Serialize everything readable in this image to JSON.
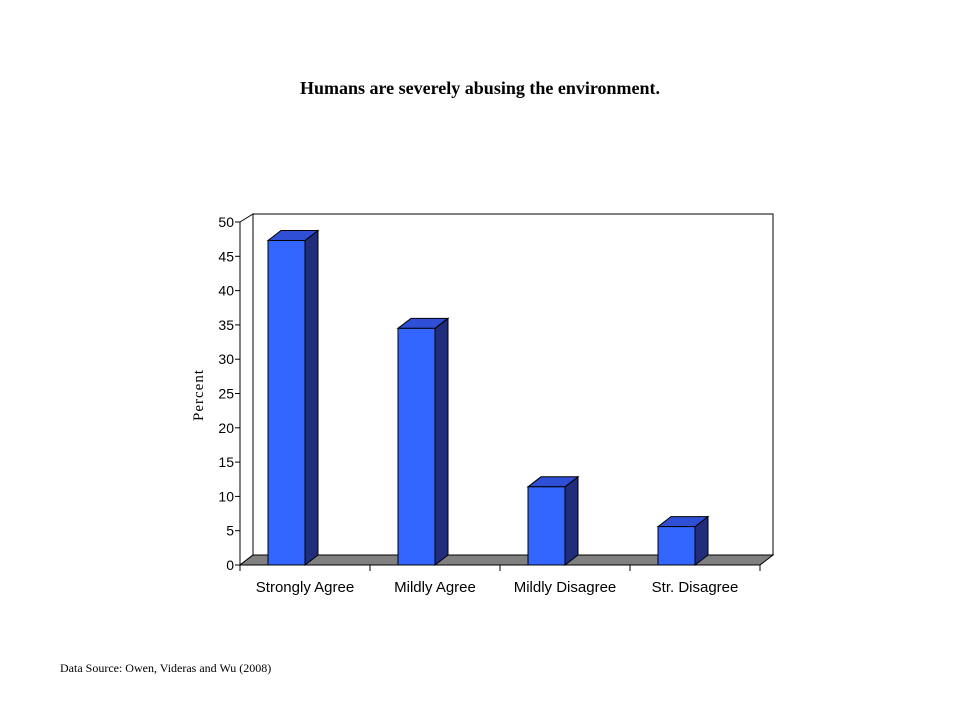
{
  "chart_data": {
    "type": "bar",
    "title": "Humans are severely abusing the environment.",
    "ylabel": "Percent",
    "xlabel": "",
    "categories": [
      "Strongly Agree",
      "Mildly Agree",
      "Mildly Disagree",
      "Str. Disagree"
    ],
    "values": [
      47.3,
      34.5,
      11.4,
      5.6
    ],
    "ylim": [
      0,
      50
    ],
    "yticks": [
      "0",
      "5",
      "10",
      "15",
      "20",
      "25",
      "30",
      "35",
      "40",
      "45",
      "50"
    ],
    "grid": false,
    "style": "3d",
    "colors": {
      "bar_front": "#3366FF",
      "bar_side": "#1F2D7A",
      "bar_top": "#2E4FD6",
      "floor": "#808080"
    }
  },
  "footer": {
    "source": "Data Source: Owen, Videras and Wu (2008)"
  }
}
